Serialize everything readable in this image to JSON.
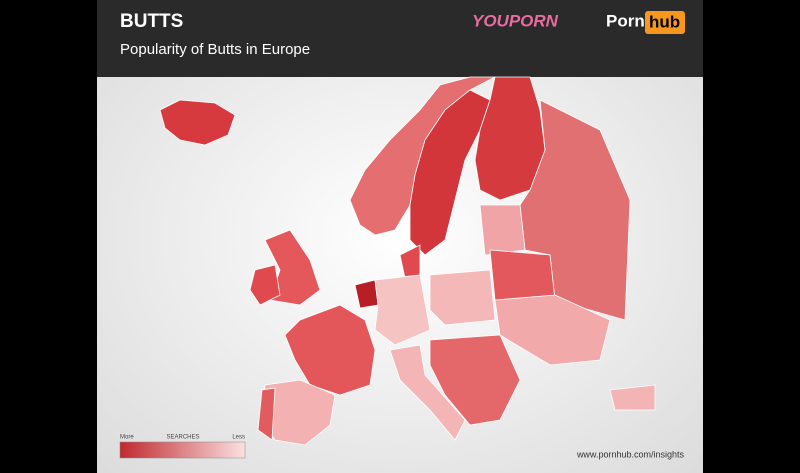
{
  "header": {
    "title": "BUTTS",
    "subtitle": "Popularity of Butts in Europe",
    "logo_left": "YOUPORN",
    "logo_right_a": "Porn",
    "logo_right_b": "hub"
  },
  "legend": {
    "more": "More",
    "label": "SEARCHES",
    "less": "Less"
  },
  "footer": {
    "url": "www.pornhub.com/insights"
  }
}
